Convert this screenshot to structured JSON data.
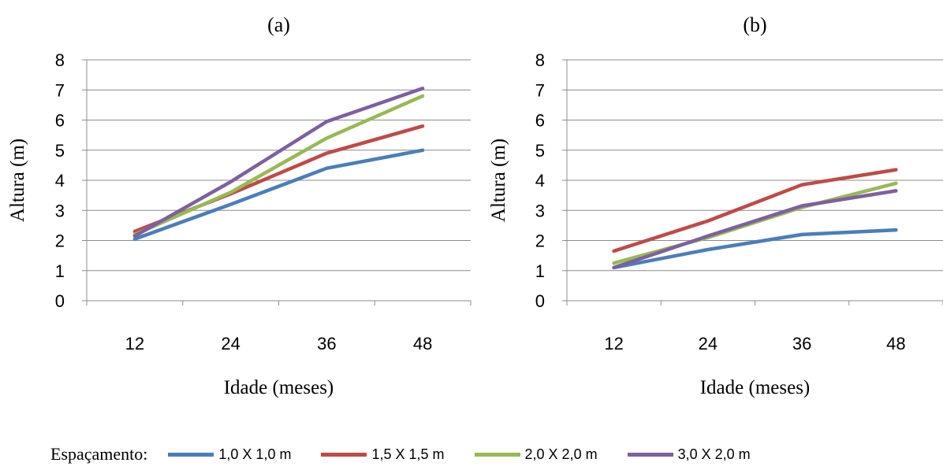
{
  "figure": {
    "legend_prefix": "Espaçamento:",
    "legend": [
      {
        "label": "1,0 X 1,0 m",
        "color": "#4a7ebb"
      },
      {
        "label": "1,5 X 1,5 m",
        "color": "#be4b48"
      },
      {
        "label": "2,0 X 2,0 m",
        "color": "#98b954"
      },
      {
        "label": "3,0 X 2,0 m",
        "color": "#7d60a0"
      }
    ]
  },
  "chart_data": [
    {
      "type": "line",
      "title": "(a)",
      "xlabel": "Idade (meses)",
      "ylabel": "Altura (m)",
      "categories": [
        "12",
        "24",
        "36",
        "48"
      ],
      "ylim": [
        0,
        8
      ],
      "yticks": [
        "0",
        "1",
        "2",
        "3",
        "4",
        "5",
        "6",
        "7",
        "8"
      ],
      "grid": true,
      "series": [
        {
          "name": "1,0 X 1,0 m",
          "color": "#4a7ebb",
          "values": [
            2.05,
            3.2,
            4.4,
            5.0
          ]
        },
        {
          "name": "1,5 X 1,5 m",
          "color": "#be4b48",
          "values": [
            2.3,
            3.55,
            4.9,
            5.8
          ]
        },
        {
          "name": "2,0 X 2,0 m",
          "color": "#98b954",
          "values": [
            2.2,
            3.6,
            5.4,
            6.8
          ]
        },
        {
          "name": "3,0 X 2,0 m",
          "color": "#7d60a0",
          "values": [
            2.15,
            3.95,
            5.95,
            7.05
          ]
        }
      ]
    },
    {
      "type": "line",
      "title": "(b)",
      "xlabel": "Idade (meses)",
      "ylabel": "Altura (m)",
      "categories": [
        "12",
        "24",
        "36",
        "48"
      ],
      "ylim": [
        0,
        8
      ],
      "yticks": [
        "0",
        "1",
        "2",
        "3",
        "4",
        "5",
        "6",
        "7",
        "8"
      ],
      "grid": true,
      "series": [
        {
          "name": "1,0 X 1,0 m",
          "color": "#4a7ebb",
          "values": [
            1.1,
            1.7,
            2.2,
            2.35
          ]
        },
        {
          "name": "1,5 X 1,5 m",
          "color": "#be4b48",
          "values": [
            1.65,
            2.65,
            3.85,
            4.35
          ]
        },
        {
          "name": "2,0 X 2,0 m",
          "color": "#98b954",
          "values": [
            1.25,
            2.1,
            3.1,
            3.9
          ]
        },
        {
          "name": "3,0 X 2,0 m",
          "color": "#7d60a0",
          "values": [
            1.1,
            2.15,
            3.15,
            3.65
          ]
        }
      ]
    }
  ]
}
